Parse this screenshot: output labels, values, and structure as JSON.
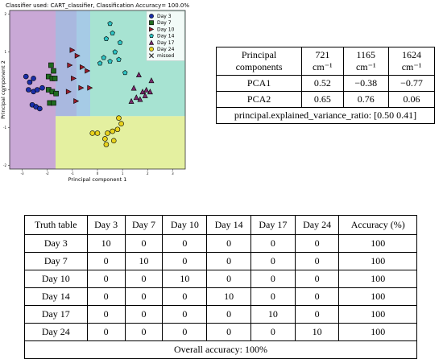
{
  "chart_data": {
    "type": "scatter",
    "title": "Classifier used: CART_classifier, Classification Accuracy= 100.0%",
    "xlabel": "Principal component 1",
    "ylabel": "Principal component 2",
    "xlim": [
      -3.5,
      3.5
    ],
    "ylim": [
      -2.1,
      2.1
    ],
    "xticks": [
      "-3",
      "-2",
      "-1",
      "0",
      "1",
      "2",
      "3"
    ],
    "yticks": [
      "-2",
      "-1",
      "0",
      "1",
      "2"
    ],
    "regions": [
      {
        "name": "Day 3",
        "color": "#c9a8d6"
      },
      {
        "name": "Day 7",
        "color": "#a9b8df"
      },
      {
        "name": "Day 10",
        "color": "#a6cbe6"
      },
      {
        "name": "Day 14",
        "color": "#a7e3d2"
      },
      {
        "name": "Day 24",
        "color": "#e4f0a0"
      }
    ],
    "legend_position": "top-right",
    "series": [
      {
        "name": "Day 3",
        "marker": "circle",
        "color": "#1a2ea8",
        "points": [
          [
            -2.85,
            0.35
          ],
          [
            -2.7,
            0.2
          ],
          [
            -2.55,
            0.3
          ],
          [
            -2.75,
            0.0
          ],
          [
            -2.55,
            -0.05
          ],
          [
            -2.4,
            0.0
          ],
          [
            -2.6,
            -0.4
          ],
          [
            -2.45,
            -0.45
          ],
          [
            -2.3,
            -0.5
          ],
          [
            -2.2,
            0.05
          ]
        ]
      },
      {
        "name": "Day 7",
        "marker": "square",
        "color": "#1e6a1e",
        "points": [
          [
            -1.85,
            0.65
          ],
          [
            -1.75,
            0.5
          ],
          [
            -1.95,
            0.35
          ],
          [
            -1.8,
            0.3
          ],
          [
            -1.7,
            0.3
          ],
          [
            -1.95,
            0.0
          ],
          [
            -1.8,
            -0.05
          ],
          [
            -1.65,
            -0.1
          ],
          [
            -1.9,
            -0.35
          ],
          [
            -1.75,
            -0.35
          ]
        ]
      },
      {
        "name": "Day 10",
        "marker": "triangle-right",
        "color": "#9b1b2a",
        "points": [
          [
            -1.0,
            1.05
          ],
          [
            -0.8,
            0.9
          ],
          [
            -1.1,
            0.65
          ],
          [
            -0.6,
            0.6
          ],
          [
            -0.4,
            0.5
          ],
          [
            -0.95,
            0.3
          ],
          [
            -0.65,
            0.05
          ],
          [
            -0.3,
            0.05
          ],
          [
            -1.15,
            -0.05
          ],
          [
            -0.85,
            -0.3
          ]
        ]
      },
      {
        "name": "Day 14",
        "marker": "pentagon",
        "color": "#2ec4c4",
        "points": [
          [
            0.5,
            1.75
          ],
          [
            0.6,
            1.5
          ],
          [
            0.35,
            1.35
          ],
          [
            0.9,
            1.25
          ],
          [
            0.7,
            1.0
          ],
          [
            0.25,
            0.85
          ],
          [
            0.85,
            0.8
          ],
          [
            0.5,
            0.75
          ],
          [
            0.1,
            0.7
          ],
          [
            1.1,
            0.45
          ]
        ]
      },
      {
        "name": "Day 17",
        "marker": "triangle-up",
        "color": "#7b2a6e",
        "points": [
          [
            1.65,
            0.4
          ],
          [
            2.15,
            0.25
          ],
          [
            1.45,
            0.05
          ],
          [
            1.8,
            -0.05
          ],
          [
            1.95,
            0.0
          ],
          [
            2.1,
            -0.05
          ],
          [
            1.7,
            -0.25
          ],
          [
            1.55,
            -0.2
          ],
          [
            1.35,
            -0.3
          ],
          [
            1.9,
            -0.15
          ]
        ]
      },
      {
        "name": "Day 24",
        "marker": "circle",
        "color": "#e8d21c",
        "points": [
          [
            0.85,
            -0.75
          ],
          [
            0.95,
            -0.9
          ],
          [
            0.8,
            -1.05
          ],
          [
            0.6,
            -1.1
          ],
          [
            0.4,
            -1.15
          ],
          [
            0.0,
            -1.15
          ],
          [
            -0.2,
            -1.15
          ],
          [
            0.3,
            -1.3
          ],
          [
            0.35,
            -1.45
          ],
          [
            0.65,
            -1.35
          ]
        ]
      },
      {
        "name": "missed",
        "marker": "x",
        "color": "#333333",
        "points": []
      }
    ]
  },
  "pca_table": {
    "header": [
      "Principal components",
      "721 cm⁻¹",
      "1165 cm⁻¹",
      "1624 cm⁻¹"
    ],
    "rows": [
      [
        "PCA1",
        "0.52",
        "−0.38",
        "−0.77"
      ],
      [
        "PCA2",
        "0.65",
        "0.76",
        "0.06"
      ]
    ],
    "footer": "principal.explained_variance_ratio: [0.50 0.41]"
  },
  "truth_table": {
    "header": [
      "Truth table",
      "Day 3",
      "Day 7",
      "Day 10",
      "Day 14",
      "Day 17",
      "Day 24",
      "Accuracy (%)"
    ],
    "rows": [
      [
        "Day 3",
        "10",
        "0",
        "0",
        "0",
        "0",
        "0",
        "100"
      ],
      [
        "Day 7",
        "0",
        "10",
        "0",
        "0",
        "0",
        "0",
        "100"
      ],
      [
        "Day 10",
        "0",
        "0",
        "10",
        "0",
        "0",
        "0",
        "100"
      ],
      [
        "Day 14",
        "0",
        "0",
        "0",
        "10",
        "0",
        "0",
        "100"
      ],
      [
        "Day 17",
        "0",
        "0",
        "0",
        "0",
        "10",
        "0",
        "100"
      ],
      [
        "Day 24",
        "0",
        "0",
        "0",
        "0",
        "0",
        "10",
        "100"
      ]
    ],
    "footer": "Overall accuracy: 100%"
  }
}
